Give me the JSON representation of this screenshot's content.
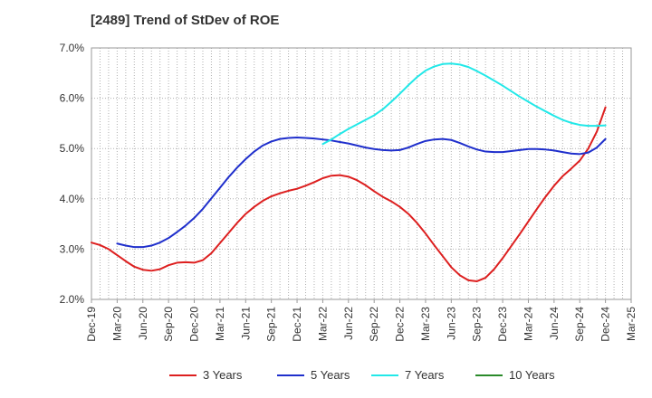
{
  "title": "[2489]  Trend of StDev of ROE",
  "chart_data": {
    "type": "line",
    "title": "[2489]  Trend of StDev of ROE",
    "xlabel": "",
    "ylabel": "",
    "ylim": [
      2.0,
      7.0
    ],
    "y_ticks": [
      "2.0%",
      "3.0%",
      "4.0%",
      "5.0%",
      "6.0%",
      "7.0%"
    ],
    "y_tick_values": [
      2.0,
      3.0,
      4.0,
      5.0,
      6.0,
      7.0
    ],
    "x_start": "Dec-19",
    "x_end": "Mar-25",
    "x_ticks": [
      "Dec-19",
      "Mar-20",
      "Jun-20",
      "Sep-20",
      "Dec-20",
      "Mar-21",
      "Jun-21",
      "Sep-21",
      "Dec-21",
      "Mar-22",
      "Jun-22",
      "Sep-22",
      "Dec-22",
      "Mar-23",
      "Jun-23",
      "Sep-23",
      "Dec-23",
      "Mar-24",
      "Jun-24",
      "Sep-24",
      "Dec-24",
      "Mar-25"
    ],
    "grid": true,
    "legend_position": "bottom",
    "series": [
      {
        "name": "3 Years",
        "color": "#dd1f1f",
        "points": [
          [
            "Dec-19",
            3.13
          ],
          [
            "Jan-20",
            3.08
          ],
          [
            "Feb-20",
            3.0
          ],
          [
            "Mar-20",
            2.88
          ],
          [
            "Apr-20",
            2.76
          ],
          [
            "May-20",
            2.65
          ],
          [
            "Jun-20",
            2.59
          ],
          [
            "Jul-20",
            2.57
          ],
          [
            "Aug-20",
            2.6
          ],
          [
            "Sep-20",
            2.68
          ],
          [
            "Oct-20",
            2.73
          ],
          [
            "Nov-20",
            2.74
          ],
          [
            "Dec-20",
            2.73
          ],
          [
            "Jan-21",
            2.78
          ],
          [
            "Feb-21",
            2.92
          ],
          [
            "Mar-21",
            3.12
          ],
          [
            "Apr-21",
            3.32
          ],
          [
            "May-21",
            3.52
          ],
          [
            "Jun-21",
            3.7
          ],
          [
            "Jul-21",
            3.84
          ],
          [
            "Aug-21",
            3.96
          ],
          [
            "Sep-21",
            4.05
          ],
          [
            "Oct-21",
            4.11
          ],
          [
            "Nov-21",
            4.16
          ],
          [
            "Dec-21",
            4.2
          ],
          [
            "Jan-22",
            4.26
          ],
          [
            "Feb-22",
            4.33
          ],
          [
            "Mar-22",
            4.41
          ],
          [
            "Apr-22",
            4.46
          ],
          [
            "May-22",
            4.47
          ],
          [
            "Jun-22",
            4.44
          ],
          [
            "Jul-22",
            4.37
          ],
          [
            "Aug-22",
            4.27
          ],
          [
            "Sep-22",
            4.15
          ],
          [
            "Oct-22",
            4.04
          ],
          [
            "Nov-22",
            3.95
          ],
          [
            "Dec-22",
            3.84
          ],
          [
            "Jan-23",
            3.7
          ],
          [
            "Feb-23",
            3.52
          ],
          [
            "Mar-23",
            3.31
          ],
          [
            "Apr-23",
            3.08
          ],
          [
            "May-23",
            2.86
          ],
          [
            "Jun-23",
            2.64
          ],
          [
            "Jul-23",
            2.48
          ],
          [
            "Aug-23",
            2.38
          ],
          [
            "Sep-23",
            2.36
          ],
          [
            "Oct-23",
            2.43
          ],
          [
            "Nov-23",
            2.6
          ],
          [
            "Dec-23",
            2.82
          ],
          [
            "Jan-24",
            3.06
          ],
          [
            "Feb-24",
            3.3
          ],
          [
            "Mar-24",
            3.55
          ],
          [
            "Apr-24",
            3.8
          ],
          [
            "May-24",
            4.04
          ],
          [
            "Jun-24",
            4.26
          ],
          [
            "Jul-24",
            4.45
          ],
          [
            "Aug-24",
            4.6
          ],
          [
            "Sep-24",
            4.76
          ],
          [
            "Oct-24",
            5.0
          ],
          [
            "Nov-24",
            5.34
          ],
          [
            "Dec-24",
            5.82
          ]
        ]
      },
      {
        "name": "5 Years",
        "color": "#1f2fcc",
        "points": [
          [
            "Mar-20",
            3.11
          ],
          [
            "Apr-20",
            3.07
          ],
          [
            "May-20",
            3.04
          ],
          [
            "Jun-20",
            3.04
          ],
          [
            "Jul-20",
            3.07
          ],
          [
            "Aug-20",
            3.13
          ],
          [
            "Sep-20",
            3.22
          ],
          [
            "Oct-20",
            3.34
          ],
          [
            "Nov-20",
            3.47
          ],
          [
            "Dec-20",
            3.62
          ],
          [
            "Jan-21",
            3.8
          ],
          [
            "Feb-21",
            4.01
          ],
          [
            "Mar-21",
            4.22
          ],
          [
            "Apr-21",
            4.43
          ],
          [
            "May-21",
            4.62
          ],
          [
            "Jun-21",
            4.79
          ],
          [
            "Jul-21",
            4.94
          ],
          [
            "Aug-21",
            5.06
          ],
          [
            "Sep-21",
            5.14
          ],
          [
            "Oct-21",
            5.19
          ],
          [
            "Nov-21",
            5.21
          ],
          [
            "Dec-21",
            5.22
          ],
          [
            "Jan-22",
            5.21
          ],
          [
            "Feb-22",
            5.2
          ],
          [
            "Mar-22",
            5.18
          ],
          [
            "Apr-22",
            5.16
          ],
          [
            "May-22",
            5.13
          ],
          [
            "Jun-22",
            5.1
          ],
          [
            "Jul-22",
            5.06
          ],
          [
            "Aug-22",
            5.02
          ],
          [
            "Sep-22",
            4.99
          ],
          [
            "Oct-22",
            4.97
          ],
          [
            "Nov-22",
            4.96
          ],
          [
            "Dec-22",
            4.97
          ],
          [
            "Jan-23",
            5.02
          ],
          [
            "Feb-23",
            5.09
          ],
          [
            "Mar-23",
            5.15
          ],
          [
            "Apr-23",
            5.18
          ],
          [
            "May-23",
            5.19
          ],
          [
            "Jun-23",
            5.17
          ],
          [
            "Jul-23",
            5.11
          ],
          [
            "Aug-23",
            5.04
          ],
          [
            "Sep-23",
            4.98
          ],
          [
            "Oct-23",
            4.94
          ],
          [
            "Nov-23",
            4.93
          ],
          [
            "Dec-23",
            4.93
          ],
          [
            "Jan-24",
            4.95
          ],
          [
            "Feb-24",
            4.97
          ],
          [
            "Mar-24",
            4.99
          ],
          [
            "Apr-24",
            4.99
          ],
          [
            "May-24",
            4.98
          ],
          [
            "Jun-24",
            4.96
          ],
          [
            "Jul-24",
            4.93
          ],
          [
            "Aug-24",
            4.9
          ],
          [
            "Sep-24",
            4.89
          ],
          [
            "Oct-24",
            4.92
          ],
          [
            "Nov-24",
            5.02
          ],
          [
            "Dec-24",
            5.19
          ]
        ]
      },
      {
        "name": "7 Years",
        "color": "#22e8e8",
        "points": [
          [
            "Mar-22",
            5.09
          ],
          [
            "Apr-22",
            5.18
          ],
          [
            "May-22",
            5.29
          ],
          [
            "Jun-22",
            5.39
          ],
          [
            "Jul-22",
            5.48
          ],
          [
            "Aug-22",
            5.57
          ],
          [
            "Sep-22",
            5.66
          ],
          [
            "Oct-22",
            5.78
          ],
          [
            "Nov-22",
            5.93
          ],
          [
            "Dec-22",
            6.09
          ],
          [
            "Jan-23",
            6.26
          ],
          [
            "Feb-23",
            6.42
          ],
          [
            "Mar-23",
            6.55
          ],
          [
            "Apr-23",
            6.63
          ],
          [
            "May-23",
            6.68
          ],
          [
            "Jun-23",
            6.69
          ],
          [
            "Jul-23",
            6.67
          ],
          [
            "Aug-23",
            6.62
          ],
          [
            "Sep-23",
            6.54
          ],
          [
            "Oct-23",
            6.45
          ],
          [
            "Nov-23",
            6.35
          ],
          [
            "Dec-23",
            6.25
          ],
          [
            "Jan-24",
            6.14
          ],
          [
            "Feb-24",
            6.03
          ],
          [
            "Mar-24",
            5.93
          ],
          [
            "Apr-24",
            5.83
          ],
          [
            "May-24",
            5.74
          ],
          [
            "Jun-24",
            5.65
          ],
          [
            "Jul-24",
            5.57
          ],
          [
            "Aug-24",
            5.51
          ],
          [
            "Sep-24",
            5.47
          ],
          [
            "Oct-24",
            5.45
          ],
          [
            "Nov-24",
            5.45
          ],
          [
            "Dec-24",
            5.46
          ]
        ]
      },
      {
        "name": "10 Years",
        "color": "#2a8a2a",
        "points": []
      }
    ]
  }
}
